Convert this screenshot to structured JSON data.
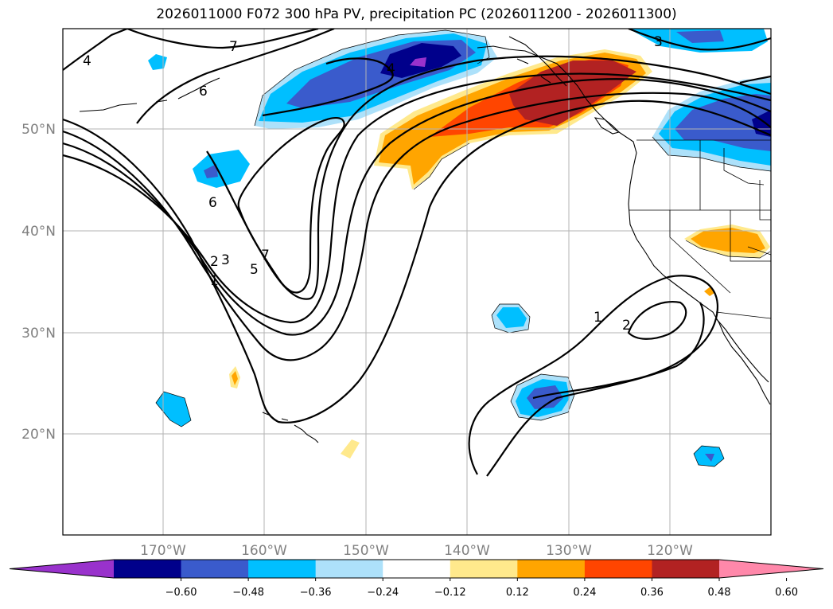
{
  "title": "2026011000 F072 300 hPa PV, precipitation PC (2026011200 - 2026011300)",
  "lat_labels": [
    "50°N",
    "40°N",
    "30°N",
    "20°N"
  ],
  "lon_labels": [
    "170°W",
    "160°W",
    "150°W",
    "140°W",
    "130°W",
    "120°W"
  ],
  "colorbar": {
    "ticks": [
      "−0.60",
      "−0.48",
      "−0.36",
      "−0.24",
      "−0.12",
      "0.12",
      "0.24",
      "0.36",
      "0.48",
      "0.60"
    ],
    "colors": [
      "#9932CC",
      "#00008B",
      "#3A5BCC",
      "#00BFFF",
      "#ADE1FA",
      "#FFFFFF",
      "#FFE98C",
      "#FFA500",
      "#FF4500",
      "#B22222",
      "#FF88AA"
    ]
  },
  "pv_contour_labels": [
    "7",
    "4",
    "6",
    "4",
    "6",
    "2",
    "3",
    "1",
    "7",
    "5",
    "1",
    "2",
    "3"
  ]
}
